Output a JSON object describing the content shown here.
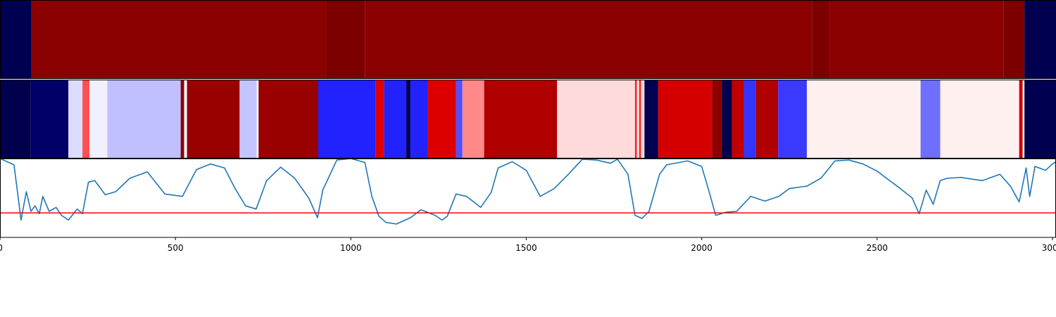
{
  "chart_data": [
    {
      "type": "heatmap",
      "panel": "top-band",
      "xlim": [
        0,
        3010
      ],
      "segments": [
        {
          "x0": 0,
          "x1": 90,
          "color": "#000050"
        },
        {
          "x0": 90,
          "x1": 930,
          "color": "#8b0000"
        },
        {
          "x0": 930,
          "x1": 1040,
          "color": "#7d0000"
        },
        {
          "x0": 1040,
          "x1": 2315,
          "color": "#8b0000"
        },
        {
          "x0": 2315,
          "x1": 2365,
          "color": "#7d0000"
        },
        {
          "x0": 2365,
          "x1": 2860,
          "color": "#8b0000"
        },
        {
          "x0": 2860,
          "x1": 2920,
          "color": "#7d0000"
        },
        {
          "x0": 2920,
          "x1": 3010,
          "color": "#000050"
        }
      ]
    },
    {
      "type": "heatmap",
      "panel": "middle-band",
      "xlim": [
        0,
        3010
      ],
      "segments": [
        {
          "x0": 0,
          "x1": 88,
          "color": "#00004d"
        },
        {
          "x0": 88,
          "x1": 195,
          "color": "#000068"
        },
        {
          "x0": 195,
          "x1": 235,
          "color": "#dcdcff"
        },
        {
          "x0": 235,
          "x1": 255,
          "color": "#ff5050"
        },
        {
          "x0": 255,
          "x1": 306,
          "color": "#f0f0ff"
        },
        {
          "x0": 306,
          "x1": 515,
          "color": "#c0c0ff"
        },
        {
          "x0": 515,
          "x1": 525,
          "color": "#8b0000"
        },
        {
          "x0": 525,
          "x1": 533,
          "color": "#f4f4ff"
        },
        {
          "x0": 533,
          "x1": 683,
          "color": "#990000"
        },
        {
          "x0": 683,
          "x1": 732,
          "color": "#c4c4ff"
        },
        {
          "x0": 732,
          "x1": 737,
          "color": "#ffffff"
        },
        {
          "x0": 737,
          "x1": 907,
          "color": "#990000"
        },
        {
          "x0": 907,
          "x1": 1070,
          "color": "#2222ff"
        },
        {
          "x0": 1070,
          "x1": 1095,
          "color": "#dd0000"
        },
        {
          "x0": 1095,
          "x1": 1158,
          "color": "#2222ff"
        },
        {
          "x0": 1158,
          "x1": 1170,
          "color": "#000050"
        },
        {
          "x0": 1170,
          "x1": 1218,
          "color": "#2222ff"
        },
        {
          "x0": 1218,
          "x1": 1300,
          "color": "#dd0000"
        },
        {
          "x0": 1300,
          "x1": 1318,
          "color": "#5050ff"
        },
        {
          "x0": 1318,
          "x1": 1380,
          "color": "#ff8888"
        },
        {
          "x0": 1380,
          "x1": 1588,
          "color": "#b00000"
        },
        {
          "x0": 1588,
          "x1": 1810,
          "color": "#ffdada"
        },
        {
          "x0": 1810,
          "x1": 1815,
          "color": "#ff2020"
        },
        {
          "x0": 1815,
          "x1": 1822,
          "color": "#ffdada"
        },
        {
          "x0": 1822,
          "x1": 1827,
          "color": "#ff2020"
        },
        {
          "x0": 1827,
          "x1": 1837,
          "color": "#ffdada"
        },
        {
          "x0": 1837,
          "x1": 1876,
          "color": "#000050"
        },
        {
          "x0": 1876,
          "x1": 2030,
          "color": "#d40000"
        },
        {
          "x0": 2030,
          "x1": 2058,
          "color": "#8b0000"
        },
        {
          "x0": 2058,
          "x1": 2086,
          "color": "#000050"
        },
        {
          "x0": 2086,
          "x1": 2120,
          "color": "#c00000"
        },
        {
          "x0": 2120,
          "x1": 2155,
          "color": "#3434ff"
        },
        {
          "x0": 2155,
          "x1": 2218,
          "color": "#b00000"
        },
        {
          "x0": 2218,
          "x1": 2300,
          "color": "#3a3aff"
        },
        {
          "x0": 2300,
          "x1": 2624,
          "color": "#fff0f0"
        },
        {
          "x0": 2624,
          "x1": 2680,
          "color": "#6e6eff"
        },
        {
          "x0": 2680,
          "x1": 2905,
          "color": "#fff0f0"
        },
        {
          "x0": 2905,
          "x1": 2915,
          "color": "#cc0000"
        },
        {
          "x0": 2915,
          "x1": 2920,
          "color": "#ffffff"
        },
        {
          "x0": 2920,
          "x1": 3010,
          "color": "#000050"
        }
      ]
    },
    {
      "type": "line",
      "panel": "signal",
      "xlim": [
        0,
        3010
      ],
      "ylim": [
        0,
        1
      ],
      "xticks": [
        0,
        500,
        1000,
        1500,
        2000,
        2500,
        3000
      ],
      "xtick_labels": [
        "0",
        "500",
        "1000",
        "1500",
        "2000",
        "2500",
        "3000"
      ],
      "threshold": 0.31,
      "threshold_color": "#ff0000",
      "line_color": "#1f77b4",
      "x": [
        0,
        40,
        60,
        75,
        88,
        100,
        112,
        122,
        140,
        160,
        175,
        195,
        220,
        235,
        252,
        270,
        300,
        330,
        370,
        420,
        470,
        520,
        560,
        600,
        640,
        670,
        700,
        730,
        760,
        800,
        840,
        880,
        905,
        920,
        960,
        1000,
        1040,
        1060,
        1080,
        1100,
        1130,
        1170,
        1200,
        1240,
        1260,
        1275,
        1300,
        1330,
        1370,
        1400,
        1420,
        1460,
        1500,
        1540,
        1580,
        1620,
        1660,
        1700,
        1740,
        1760,
        1790,
        1810,
        1830,
        1850,
        1880,
        1900,
        1960,
        2000,
        2020,
        2040,
        2070,
        2100,
        2140,
        2180,
        2220,
        2250,
        2300,
        2340,
        2380,
        2420,
        2460,
        2500,
        2560,
        2600,
        2620,
        2640,
        2660,
        2680,
        2700,
        2740,
        2800,
        2850,
        2880,
        2905,
        2925,
        2935,
        2950,
        2980,
        3000,
        3010
      ],
      "y": [
        1.0,
        0.92,
        0.22,
        0.58,
        0.33,
        0.4,
        0.3,
        0.52,
        0.33,
        0.38,
        0.28,
        0.22,
        0.36,
        0.3,
        0.7,
        0.72,
        0.54,
        0.58,
        0.75,
        0.83,
        0.55,
        0.52,
        0.86,
        0.93,
        0.88,
        0.62,
        0.4,
        0.36,
        0.72,
        0.89,
        0.75,
        0.5,
        0.25,
        0.6,
        0.98,
        1.0,
        0.95,
        0.52,
        0.27,
        0.19,
        0.17,
        0.25,
        0.35,
        0.28,
        0.22,
        0.27,
        0.55,
        0.52,
        0.38,
        0.57,
        0.88,
        0.96,
        0.85,
        0.52,
        0.62,
        0.8,
        0.99,
        0.98,
        0.94,
        0.99,
        0.8,
        0.28,
        0.24,
        0.33,
        0.8,
        0.92,
        0.97,
        0.9,
        0.6,
        0.28,
        0.32,
        0.33,
        0.52,
        0.46,
        0.52,
        0.62,
        0.65,
        0.75,
        0.97,
        0.98,
        0.93,
        0.84,
        0.64,
        0.5,
        0.3,
        0.6,
        0.42,
        0.72,
        0.75,
        0.76,
        0.72,
        0.8,
        0.65,
        0.45,
        0.88,
        0.52,
        0.9,
        0.85,
        0.93,
        0.96
      ]
    }
  ]
}
